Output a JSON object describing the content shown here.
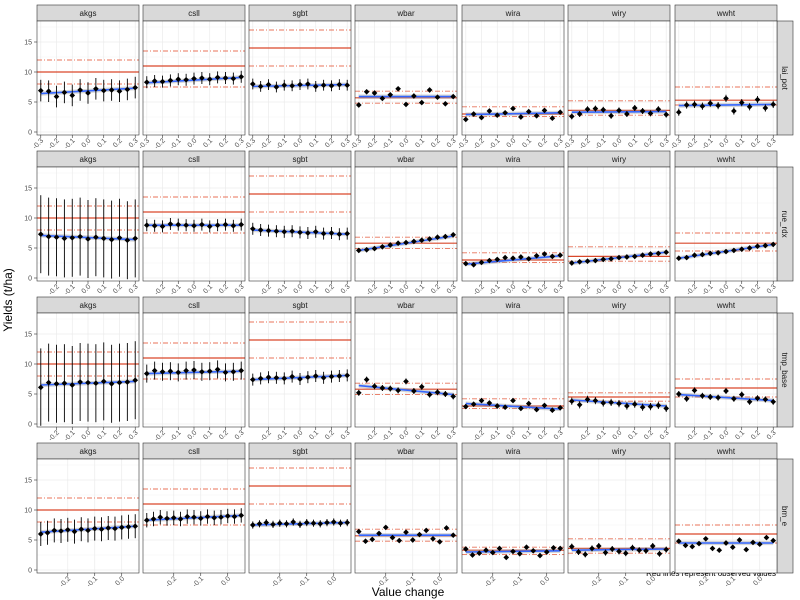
{
  "chart_data": {
    "type": "scatter",
    "title": "",
    "xlabel": "Value change",
    "ylabel": "Yields (t/ha)",
    "caption": "Red lines represent observed values",
    "ylim": [
      -0.5,
      18.5
    ],
    "y_ticks": [
      0,
      5,
      10,
      15
    ],
    "columns": [
      "akgs",
      "csll",
      "sgbt",
      "wbar",
      "wira",
      "wiry",
      "wwht"
    ],
    "rows": [
      {
        "name": "lai_pot",
        "x": [
          -0.3,
          -0.25,
          -0.2,
          -0.15,
          -0.1,
          -0.05,
          0.0,
          0.05,
          0.1,
          0.15,
          0.2,
          0.25,
          0.3
        ],
        "x_ticks": [
          -0.3,
          -0.2,
          -0.1,
          0.0,
          0.1,
          0.2,
          0.3
        ],
        "xlim": [
          -0.3,
          0.3
        ],
        "panels": [
          {
            "facet": "akgs",
            "observed": 10.0,
            "band": [
              8.0,
              12.0
            ],
            "fit": [
              6.4,
              7.3
            ],
            "err": 1.8,
            "y": [
              6.9,
              6.8,
              5.9,
              6.6,
              6.1,
              7.0,
              6.5,
              7.2,
              6.9,
              7.0,
              6.8,
              7.1,
              7.4
            ]
          },
          {
            "facet": "csll",
            "observed": 11.0,
            "band": [
              7.5,
              13.5
            ],
            "fit": [
              8.2,
              9.1
            ],
            "err": 1.0,
            "y": [
              8.3,
              8.5,
              8.4,
              8.6,
              8.8,
              8.7,
              8.9,
              9.0,
              8.8,
              9.1,
              9.0,
              8.9,
              9.2
            ]
          },
          {
            "facet": "sgbt",
            "observed": 14.0,
            "band": [
              11.0,
              17.0
            ],
            "fit": [
              7.6,
              7.9
            ],
            "err": 0.9,
            "y": [
              8.0,
              7.6,
              7.9,
              7.5,
              7.8,
              7.7,
              7.9,
              8.0,
              7.6,
              7.8,
              7.7,
              7.9,
              7.8
            ]
          },
          {
            "facet": "wbar",
            "observed": 5.7,
            "band": [
              4.8,
              6.8
            ],
            "fit": [
              5.9,
              5.9
            ],
            "err": 0.3,
            "y": [
              4.5,
              6.7,
              6.5,
              5.6,
              6.2,
              7.2,
              4.6,
              6.0,
              4.9,
              7.0,
              5.8,
              4.7,
              5.9
            ]
          },
          {
            "facet": "wira",
            "observed": 3.0,
            "band": [
              2.6,
              4.2
            ],
            "fit": [
              2.9,
              3.2
            ],
            "err": 0.2,
            "y": [
              2.1,
              3.0,
              2.4,
              3.5,
              2.8,
              3.2,
              3.9,
              2.5,
              3.4,
              2.7,
              3.6,
              2.3,
              3.3
            ]
          },
          {
            "facet": "wiry",
            "observed": 3.6,
            "band": [
              2.8,
              5.2
            ],
            "fit": [
              3.3,
              3.4
            ],
            "err": 0.5,
            "y": [
              2.6,
              3.0,
              3.8,
              3.9,
              3.7,
              2.7,
              3.6,
              3.0,
              4.0,
              3.5,
              3.1,
              3.8,
              2.9
            ]
          },
          {
            "facet": "wwht",
            "observed": 5.3,
            "band": [
              4.5,
              7.5
            ],
            "fit": [
              4.4,
              4.6
            ],
            "err": 0.6,
            "y": [
              3.3,
              4.5,
              4.6,
              4.3,
              4.8,
              4.4,
              5.6,
              3.5,
              4.9,
              4.2,
              5.4,
              4.0,
              4.6
            ]
          }
        ]
      },
      {
        "name": "rue_rdx",
        "x": [
          -0.3,
          -0.25,
          -0.2,
          -0.15,
          -0.1,
          -0.05,
          0.0,
          0.05,
          0.1,
          0.15,
          0.2,
          0.25,
          0.3
        ],
        "x_ticks": [
          -0.2,
          -0.1,
          0.0,
          0.1,
          0.2,
          0.3
        ],
        "xlim": [
          -0.3,
          0.3
        ],
        "panels": [
          {
            "facet": "akgs",
            "observed": 10.0,
            "band": [
              8.0,
              12.0
            ],
            "fit": [
              7.1,
              6.4
            ],
            "err": 6.5,
            "y": [
              7.3,
              6.9,
              6.8,
              6.6,
              6.7,
              6.9,
              6.5,
              6.8,
              6.6,
              6.4,
              6.7,
              6.3,
              6.6
            ]
          },
          {
            "facet": "csll",
            "observed": 11.0,
            "band": [
              7.5,
              13.5
            ],
            "fit": [
              8.8,
              8.8
            ],
            "err": 1.0,
            "y": [
              8.8,
              8.7,
              8.6,
              9.0,
              8.9,
              8.8,
              8.7,
              8.9,
              8.6,
              8.8,
              8.9,
              8.7,
              8.9
            ]
          },
          {
            "facet": "sgbt",
            "observed": 14.0,
            "band": [
              11.0,
              17.0
            ],
            "fit": [
              8.0,
              7.3
            ],
            "err": 1.0,
            "y": [
              8.2,
              8.0,
              7.9,
              7.8,
              7.7,
              7.8,
              7.6,
              7.5,
              7.7,
              7.4,
              7.5,
              7.3,
              7.4
            ]
          },
          {
            "facet": "wbar",
            "observed": 5.8,
            "band": [
              4.9,
              6.8
            ],
            "fit": [
              4.6,
              7.0
            ],
            "err": 0.4,
            "y": [
              4.6,
              4.7,
              4.9,
              5.2,
              5.5,
              5.8,
              5.9,
              6.1,
              6.3,
              6.5,
              6.8,
              6.9,
              7.2
            ]
          },
          {
            "facet": "wira",
            "observed": 3.0,
            "band": [
              2.6,
              4.2
            ],
            "fit": [
              2.3,
              3.7
            ],
            "err": 0.3,
            "y": [
              2.4,
              2.2,
              2.6,
              2.9,
              3.1,
              3.4,
              3.3,
              3.5,
              3.2,
              3.7,
              4.0,
              3.6,
              3.8
            ]
          },
          {
            "facet": "wiry",
            "observed": 3.6,
            "band": [
              2.8,
              5.2
            ],
            "fit": [
              2.5,
              4.3
            ],
            "err": 0.4,
            "y": [
              2.5,
              2.7,
              2.8,
              2.9,
              3.1,
              3.2,
              3.4,
              3.5,
              3.6,
              3.8,
              4.0,
              4.1,
              4.3
            ]
          },
          {
            "facet": "wwht",
            "observed": 5.8,
            "band": [
              4.5,
              7.5
            ],
            "fit": [
              3.3,
              5.6
            ],
            "err": 0.4,
            "y": [
              3.3,
              3.4,
              3.8,
              3.9,
              4.1,
              4.2,
              4.4,
              4.6,
              4.8,
              5.0,
              5.3,
              5.4,
              5.6
            ]
          }
        ]
      },
      {
        "name": "tmp_base",
        "x": [
          -0.3,
          -0.25,
          -0.2,
          -0.15,
          -0.1,
          -0.05,
          0.0,
          0.05,
          0.1,
          0.15,
          0.2,
          0.25,
          0.3
        ],
        "x_ticks": [
          -0.2,
          -0.1,
          0.0,
          0.1,
          0.2,
          0.3
        ],
        "xlim": [
          -0.3,
          0.3
        ],
        "panels": [
          {
            "facet": "akgs",
            "observed": 10.0,
            "band": [
              8.0,
              12.0
            ],
            "fit": [
              6.5,
              7.1
            ],
            "err": 6.5,
            "y": [
              6.1,
              6.9,
              6.7,
              6.8,
              6.5,
              7.0,
              6.9,
              6.8,
              7.1,
              6.7,
              6.9,
              7.0,
              7.3
            ]
          },
          {
            "facet": "csll",
            "observed": 11.0,
            "band": [
              7.5,
              13.5
            ],
            "fit": [
              8.4,
              8.8
            ],
            "err": 1.5,
            "y": [
              8.4,
              8.9,
              8.7,
              8.8,
              8.6,
              8.9,
              9.0,
              8.7,
              8.8,
              9.1,
              8.6,
              8.7,
              8.9
            ]
          },
          {
            "facet": "sgbt",
            "observed": 14.0,
            "band": [
              11.0,
              17.0
            ],
            "fit": [
              7.4,
              8.1
            ],
            "err": 1.0,
            "y": [
              7.4,
              7.6,
              7.8,
              7.7,
              7.6,
              7.9,
              7.5,
              7.8,
              8.0,
              7.7,
              7.9,
              8.0,
              8.1
            ]
          },
          {
            "facet": "wbar",
            "observed": 5.8,
            "band": [
              4.9,
              6.8
            ],
            "fit": [
              6.4,
              4.9
            ],
            "err": 0.5,
            "y": [
              5.2,
              7.4,
              6.3,
              6.0,
              5.9,
              5.6,
              7.1,
              5.5,
              6.2,
              4.9,
              5.3,
              5.0,
              4.6
            ]
          },
          {
            "facet": "wira",
            "observed": 3.0,
            "band": [
              2.6,
              4.2
            ],
            "fit": [
              3.4,
              2.5
            ],
            "err": 0.4,
            "y": [
              2.9,
              3.3,
              3.9,
              3.5,
              3.0,
              2.8,
              3.9,
              2.6,
              3.4,
              2.4,
              3.1,
              2.3,
              2.7
            ]
          },
          {
            "facet": "wiry",
            "observed": 4.5,
            "band": [
              3.8,
              5.2
            ],
            "fit": [
              4.0,
              3.0
            ],
            "err": 0.6,
            "y": [
              3.8,
              3.2,
              4.1,
              3.9,
              3.5,
              3.6,
              3.4,
              3.0,
              3.3,
              2.8,
              2.9,
              3.1,
              2.6
            ]
          },
          {
            "facet": "wwht",
            "observed": 6.0,
            "band": [
              4.5,
              7.5
            ],
            "fit": [
              4.9,
              3.9
            ],
            "err": 0.5,
            "y": [
              5.0,
              4.2,
              5.6,
              4.7,
              4.5,
              4.4,
              5.5,
              4.2,
              4.9,
              3.7,
              4.3,
              4.1,
              3.7
            ]
          }
        ]
      },
      {
        "name": "bm_e",
        "x": [
          -0.3,
          -0.275,
          -0.25,
          -0.225,
          -0.2,
          -0.175,
          -0.15,
          -0.125,
          -0.1,
          -0.075,
          -0.05,
          -0.025,
          0.0,
          0.025,
          0.05
        ],
        "x_ticks": [
          -0.2,
          -0.1,
          0.0
        ],
        "xlim": [
          -0.3,
          0.05
        ],
        "panels": [
          {
            "facet": "akgs",
            "observed": 10.0,
            "band": [
              8.0,
              12.0
            ],
            "fit": [
              6.3,
              7.3
            ],
            "err": 2.0,
            "y": [
              6.0,
              6.2,
              6.6,
              6.5,
              6.7,
              6.4,
              6.8,
              6.6,
              6.9,
              6.8,
              7.0,
              6.9,
              7.1,
              7.2,
              7.3
            ]
          },
          {
            "facet": "csll",
            "observed": 11.0,
            "band": [
              7.5,
              13.5
            ],
            "fit": [
              8.3,
              9.1
            ],
            "err": 1.2,
            "y": [
              8.3,
              8.5,
              8.8,
              8.6,
              8.7,
              8.5,
              8.9,
              8.8,
              8.6,
              8.9,
              8.7,
              8.8,
              9.0,
              8.9,
              9.1
            ]
          },
          {
            "facet": "sgbt",
            "observed": 14.0,
            "band": [
              11.0,
              17.0
            ],
            "fit": [
              7.5,
              7.9
            ],
            "err": 0.6,
            "y": [
              7.5,
              7.7,
              7.9,
              7.6,
              7.8,
              7.7,
              8.0,
              7.6,
              7.9,
              7.8,
              7.7,
              7.9,
              8.0,
              7.8,
              7.9
            ]
          },
          {
            "facet": "wbar",
            "observed": 5.7,
            "band": [
              4.8,
              6.8
            ],
            "fit": [
              5.8,
              5.8
            ],
            "err": 0.3,
            "y": [
              6.4,
              4.8,
              5.1,
              6.1,
              7.1,
              5.4,
              4.9,
              6.3,
              5.0,
              5.9,
              6.6,
              5.2,
              4.7,
              7.0,
              5.8
            ]
          },
          {
            "facet": "wira",
            "observed": 3.3,
            "band": [
              2.6,
              3.8
            ],
            "fit": [
              3.0,
              3.2
            ],
            "err": 0.3,
            "y": [
              3.5,
              2.5,
              2.8,
              3.3,
              2.9,
              3.6,
              2.1,
              3.1,
              2.7,
              3.8,
              3.2,
              2.4,
              3.0,
              3.7,
              3.6
            ]
          },
          {
            "facet": "wiry",
            "observed": 3.6,
            "band": [
              2.8,
              5.2
            ],
            "fit": [
              3.3,
              3.5
            ],
            "err": 0.5,
            "y": [
              3.9,
              3.0,
              2.6,
              3.6,
              4.0,
              2.9,
              3.5,
              3.1,
              2.8,
              3.7,
              3.3,
              3.2,
              4.0,
              2.7,
              3.4
            ]
          },
          {
            "facet": "wwht",
            "observed": 6.0,
            "band": [
              4.5,
              7.5
            ],
            "fit": [
              4.5,
              4.5
            ],
            "err": 0.3,
            "y": [
              4.8,
              4.1,
              3.9,
              4.4,
              5.2,
              3.6,
              3.3,
              4.5,
              3.8,
              5.0,
              3.4,
              4.6,
              4.3,
              5.4,
              4.9
            ]
          }
        ]
      }
    ]
  }
}
